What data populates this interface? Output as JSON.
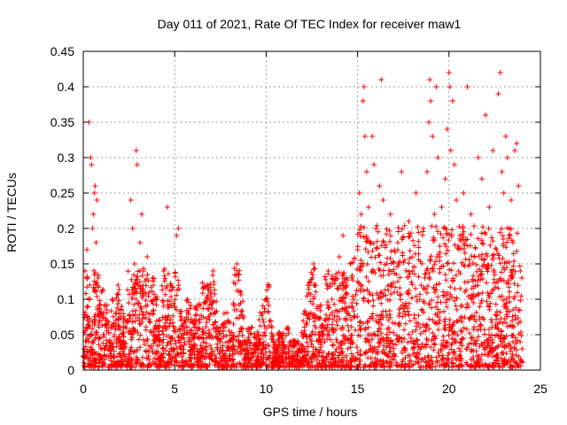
{
  "chart_data": {
    "type": "scatter",
    "title": "Day 011 of 2021, Rate Of TEC Index for receiver maw1",
    "xlabel": "GPS time / hours",
    "ylabel": "ROTI / TECUs",
    "xlim": [
      0,
      25
    ],
    "ylim": [
      0,
      0.45
    ],
    "xticks": [
      0,
      5,
      10,
      15,
      20,
      25
    ],
    "yticks": [
      0,
      0.05,
      0.1,
      0.15,
      0.2,
      0.25,
      0.3,
      0.35,
      0.4,
      0.45
    ],
    "grid": true,
    "marker": "+",
    "color": "#ff0000",
    "series": [
      {
        "name": "ROTI",
        "points": [
          [
            0.05,
            0.02
          ],
          [
            0.1,
            0.14
          ],
          [
            0.15,
            0.06
          ],
          [
            0.2,
            0.17
          ],
          [
            0.25,
            0.09
          ],
          [
            0.3,
            0.35
          ],
          [
            0.35,
            0.12
          ],
          [
            0.4,
            0.3
          ],
          [
            0.45,
            0.29
          ],
          [
            0.5,
            0.2
          ],
          [
            0.55,
            0.22
          ],
          [
            0.6,
            0.25
          ],
          [
            0.65,
            0.26
          ],
          [
            0.7,
            0.18
          ],
          [
            0.75,
            0.24
          ],
          [
            0.8,
            0.13
          ],
          [
            0.9,
            0.08
          ],
          [
            1.0,
            0.11
          ],
          [
            1.1,
            0.05
          ],
          [
            1.2,
            0.09
          ],
          [
            1.3,
            0.07
          ],
          [
            1.4,
            0.04
          ],
          [
            1.5,
            0.06
          ],
          [
            1.6,
            0.1
          ],
          [
            1.7,
            0.05
          ],
          [
            1.8,
            0.08
          ],
          [
            1.9,
            0.12
          ],
          [
            2.0,
            0.06
          ],
          [
            2.1,
            0.09
          ],
          [
            2.2,
            0.04
          ],
          [
            2.4,
            0.07
          ],
          [
            2.6,
            0.24
          ],
          [
            2.7,
            0.2
          ],
          [
            2.8,
            0.15
          ],
          [
            2.9,
            0.31
          ],
          [
            2.95,
            0.29
          ],
          [
            3.0,
            0.12
          ],
          [
            3.1,
            0.18
          ],
          [
            3.2,
            0.22
          ],
          [
            3.3,
            0.14
          ],
          [
            3.4,
            0.09
          ],
          [
            3.5,
            0.16
          ],
          [
            3.6,
            0.11
          ],
          [
            3.7,
            0.08
          ],
          [
            3.8,
            0.13
          ],
          [
            3.9,
            0.06
          ],
          [
            4.0,
            0.1
          ],
          [
            4.1,
            0.05
          ],
          [
            4.2,
            0.07
          ],
          [
            4.4,
            0.14
          ],
          [
            4.6,
            0.23
          ],
          [
            4.7,
            0.09
          ],
          [
            4.8,
            0.12
          ],
          [
            5.0,
            0.06
          ],
          [
            5.1,
            0.19
          ],
          [
            5.2,
            0.2
          ],
          [
            5.3,
            0.08
          ],
          [
            5.5,
            0.05
          ],
          [
            5.7,
            0.1
          ],
          [
            5.9,
            0.04
          ],
          [
            6.1,
            0.07
          ],
          [
            6.3,
            0.09
          ],
          [
            6.5,
            0.05
          ],
          [
            6.8,
            0.12
          ],
          [
            7.0,
            0.03
          ],
          [
            7.1,
            0.14
          ],
          [
            7.3,
            0.06
          ],
          [
            7.5,
            0.04
          ],
          [
            7.7,
            0.08
          ],
          [
            8.0,
            0.03
          ],
          [
            8.2,
            0.05
          ],
          [
            8.4,
            0.15
          ],
          [
            8.6,
            0.11
          ],
          [
            8.8,
            0.04
          ],
          [
            9.0,
            0.02
          ],
          [
            9.2,
            0.06
          ],
          [
            9.4,
            0.03
          ],
          [
            9.6,
            0.05
          ],
          [
            9.8,
            0.08
          ],
          [
            10.0,
            0.1
          ],
          [
            10.1,
            0.12
          ],
          [
            10.2,
            0.07
          ],
          [
            10.4,
            0.04
          ],
          [
            10.6,
            0.02
          ],
          [
            10.8,
            0.05
          ],
          [
            11.0,
            0.03
          ],
          [
            11.2,
            0.06
          ],
          [
            11.4,
            0.02
          ],
          [
            11.6,
            0.04
          ],
          [
            11.8,
            0.03
          ],
          [
            12.0,
            0.05
          ],
          [
            12.2,
            0.08
          ],
          [
            12.4,
            0.12
          ],
          [
            12.6,
            0.15
          ],
          [
            12.8,
            0.09
          ],
          [
            13.0,
            0.06
          ],
          [
            13.2,
            0.04
          ],
          [
            13.4,
            0.14
          ],
          [
            13.6,
            0.1
          ],
          [
            13.8,
            0.13
          ],
          [
            14.0,
            0.16
          ],
          [
            14.2,
            0.19
          ],
          [
            14.4,
            0.12
          ],
          [
            14.6,
            0.15
          ],
          [
            14.8,
            0.1
          ],
          [
            15.0,
            0.17
          ],
          [
            15.1,
            0.25
          ],
          [
            15.2,
            0.22
          ],
          [
            15.3,
            0.38
          ],
          [
            15.35,
            0.4
          ],
          [
            15.4,
            0.33
          ],
          [
            15.5,
            0.28
          ],
          [
            15.6,
            0.23
          ],
          [
            15.7,
            0.18
          ],
          [
            15.8,
            0.33
          ],
          [
            15.9,
            0.29
          ],
          [
            16.0,
            0.2
          ],
          [
            16.2,
            0.26
          ],
          [
            16.3,
            0.41
          ],
          [
            16.4,
            0.24
          ],
          [
            16.6,
            0.15
          ],
          [
            16.8,
            0.22
          ],
          [
            17.0,
            0.11
          ],
          [
            17.2,
            0.18
          ],
          [
            17.4,
            0.28
          ],
          [
            17.6,
            0.09
          ],
          [
            17.8,
            0.21
          ],
          [
            18.0,
            0.14
          ],
          [
            18.2,
            0.25
          ],
          [
            18.4,
            0.1
          ],
          [
            18.6,
            0.2
          ],
          [
            18.8,
            0.28
          ],
          [
            18.9,
            0.35
          ],
          [
            18.95,
            0.41
          ],
          [
            19.0,
            0.38
          ],
          [
            19.1,
            0.33
          ],
          [
            19.2,
            0.22
          ],
          [
            19.3,
            0.4
          ],
          [
            19.4,
            0.3
          ],
          [
            19.5,
            0.16
          ],
          [
            19.6,
            0.23
          ],
          [
            19.8,
            0.27
          ],
          [
            19.9,
            0.34
          ],
          [
            20.0,
            0.42
          ],
          [
            20.05,
            0.4
          ],
          [
            20.1,
            0.31
          ],
          [
            20.2,
            0.38
          ],
          [
            20.3,
            0.29
          ],
          [
            20.4,
            0.24
          ],
          [
            20.6,
            0.19
          ],
          [
            20.8,
            0.25
          ],
          [
            21.0,
            0.4
          ],
          [
            21.2,
            0.22
          ],
          [
            21.4,
            0.16
          ],
          [
            21.6,
            0.3
          ],
          [
            21.8,
            0.27
          ],
          [
            22.0,
            0.36
          ],
          [
            22.2,
            0.23
          ],
          [
            22.4,
            0.31
          ],
          [
            22.6,
            0.17
          ],
          [
            22.7,
            0.39
          ],
          [
            22.8,
            0.42
          ],
          [
            22.9,
            0.28
          ],
          [
            23.0,
            0.25
          ],
          [
            23.1,
            0.33
          ],
          [
            23.2,
            0.3
          ],
          [
            23.3,
            0.2
          ],
          [
            23.4,
            0.24
          ],
          [
            23.5,
            0.18
          ],
          [
            23.6,
            0.31
          ],
          [
            23.7,
            0.32
          ],
          [
            23.8,
            0.26
          ],
          [
            23.9,
            0.14
          ],
          [
            24.0,
            0.03
          ]
        ]
      }
    ]
  }
}
